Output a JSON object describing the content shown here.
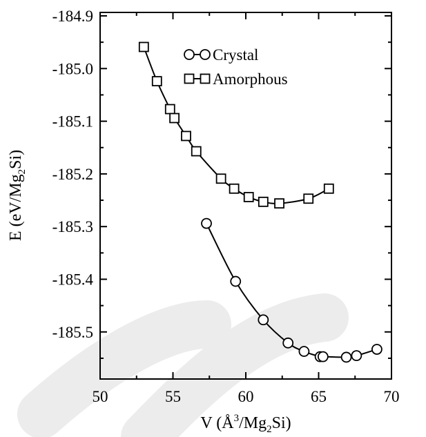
{
  "chart_data": {
    "type": "line",
    "xlabel": {
      "pre": "V (Å",
      "sup": "3",
      "mid": "/Mg",
      "sub": "2",
      "post": "Si)"
    },
    "ylabel": {
      "pre": "E (eV/Mg",
      "sub": "2",
      "post": "Si)"
    },
    "xlim": [
      50,
      70
    ],
    "ylim": [
      -185.6,
      -184.9
    ],
    "xticks": [
      50,
      55,
      60,
      65,
      70
    ],
    "xtick_labels": [
      "50",
      "55",
      "60",
      "65",
      "70"
    ],
    "yticks": [
      -184.9,
      -185.0,
      -185.1,
      -185.2,
      -185.3,
      -185.4,
      -185.5
    ],
    "ytick_labels": [
      "-184.9",
      "-185.0",
      "-185.1",
      "-185.2",
      "-185.3",
      "-185.4",
      "-185.5"
    ],
    "legend_position": "top-right",
    "grid": false,
    "series": [
      {
        "name": "Crystal",
        "marker": "circle",
        "x": [
          57.3,
          59.3,
          61.2,
          62.9,
          64.0,
          65.1,
          65.3,
          66.9,
          67.6,
          69.0
        ],
        "y": [
          -185.294,
          -185.404,
          -185.477,
          -185.521,
          -185.537,
          -185.547,
          -185.547,
          -185.548,
          -185.545,
          -185.533
        ]
      },
      {
        "name": "Amorphous",
        "marker": "square",
        "x": [
          53.0,
          53.9,
          54.8,
          55.1,
          55.9,
          56.6,
          58.3,
          59.2,
          60.2,
          61.2,
          62.3,
          64.3,
          65.7
        ],
        "y": [
          -184.959,
          -185.024,
          -185.077,
          -185.094,
          -185.128,
          -185.157,
          -185.209,
          -185.228,
          -185.244,
          -185.253,
          -185.256,
          -185.247,
          -185.228
        ]
      }
    ]
  }
}
